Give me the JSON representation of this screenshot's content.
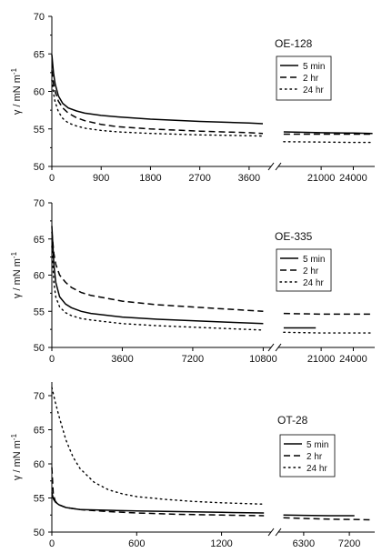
{
  "panels": [
    {
      "title": "OE-128",
      "ylabel": "γ / mN m",
      "ylabel_sup": "-1",
      "legend": [
        "5 min",
        "2 hr",
        "24 hr"
      ],
      "ylim": [
        50,
        70
      ],
      "yticks": [
        50,
        55,
        60,
        65,
        70
      ],
      "ytick_labels": [
        "50",
        "55",
        "60",
        "65",
        "70"
      ],
      "left_axis": {
        "xlim": [
          0,
          4000
        ],
        "xticks": [
          0,
          900,
          1800,
          2700,
          3600
        ],
        "xtick_labels": [
          "0",
          "900",
          "1800",
          "2700",
          "3600"
        ]
      },
      "right_axis": {
        "xlim": [
          17000,
          26000
        ],
        "xticks": [
          21000,
          24000
        ],
        "xtick_labels": [
          "21000",
          "24000"
        ]
      }
    },
    {
      "title": "OE-335",
      "ylabel": "γ / mN m",
      "ylabel_sup": "-1",
      "legend": [
        "5 min",
        "2 hr",
        "24 hr"
      ],
      "ylim": [
        50,
        70
      ],
      "yticks": [
        50,
        55,
        60,
        65,
        70
      ],
      "ytick_labels": [
        "50",
        "55",
        "60",
        "65",
        "70"
      ],
      "left_axis": {
        "xlim": [
          0,
          11200
        ],
        "xticks": [
          0,
          3600,
          7200,
          10800
        ],
        "xtick_labels": [
          "0",
          "3600",
          "7200",
          "10800"
        ]
      },
      "right_axis": {
        "xlim": [
          17000,
          26000
        ],
        "xticks": [
          21000,
          24000
        ],
        "xtick_labels": [
          "21000",
          "24000"
        ]
      }
    },
    {
      "title": "OT-28",
      "ylabel": "γ / mN m",
      "ylabel_sup": "-1",
      "legend": [
        "5 min",
        "2 hr",
        "24 hr"
      ],
      "ylim": [
        50,
        72
      ],
      "yticks": [
        50,
        55,
        60,
        65,
        70
      ],
      "ytick_labels": [
        "50",
        "55",
        "60",
        "65",
        "70"
      ],
      "left_axis": {
        "xlim": [
          0,
          1550
        ],
        "xticks": [
          0,
          600,
          1200
        ],
        "xtick_labels": [
          "0",
          "600",
          "1200"
        ]
      },
      "right_axis": {
        "xlim": [
          5800,
          7700
        ],
        "xticks": [
          6300,
          7200
        ],
        "xtick_labels": [
          "6300",
          "7200"
        ]
      }
    }
  ],
  "chart_data": [
    {
      "type": "line",
      "title": "OE-128",
      "ylabel": "γ / mN m-1",
      "ylim": [
        50,
        70
      ],
      "x_break": [
        4000,
        17000
      ],
      "series": [
        {
          "name": "5 min",
          "x": [
            0,
            30,
            60,
            120,
            200,
            300,
            450,
            600,
            900,
            1200,
            1800,
            2700,
            3600,
            3850,
            17500,
            21000,
            24000,
            25800
          ],
          "y": [
            64.9,
            62.5,
            61.0,
            59.4,
            58.4,
            57.8,
            57.4,
            57.1,
            56.8,
            56.6,
            56.3,
            56.0,
            55.8,
            55.7,
            54.6,
            54.5,
            54.45,
            54.4
          ]
        },
        {
          "name": "2 hr",
          "x": [
            0,
            30,
            60,
            120,
            200,
            300,
            450,
            600,
            900,
            1200,
            1800,
            2700,
            3600,
            3850,
            17500,
            21000,
            24000,
            25800
          ],
          "y": [
            62.8,
            61.0,
            60.0,
            58.7,
            57.8,
            57.1,
            56.5,
            56.1,
            55.6,
            55.3,
            55.0,
            54.7,
            54.5,
            54.4,
            54.3,
            54.3,
            54.3,
            54.3
          ]
        },
        {
          "name": "24 hr",
          "x": [
            0,
            30,
            60,
            120,
            200,
            300,
            450,
            600,
            900,
            1200,
            1800,
            2700,
            3600,
            3850,
            17500,
            21000,
            24000,
            25800
          ],
          "y": [
            61.5,
            59.8,
            58.6,
            57.3,
            56.4,
            55.8,
            55.4,
            55.1,
            54.8,
            54.6,
            54.4,
            54.2,
            54.1,
            54.05,
            53.3,
            53.25,
            53.2,
            53.2
          ]
        }
      ]
    },
    {
      "type": "line",
      "title": "OE-335",
      "ylabel": "γ / mN m-1",
      "ylim": [
        50,
        70
      ],
      "x_break": [
        11200,
        17000
      ],
      "series": [
        {
          "name": "5 min",
          "x": [
            0,
            100,
            200,
            400,
            700,
            1000,
            1500,
            2000,
            3600,
            5400,
            7200,
            9000,
            10800,
            17500,
            20500
          ],
          "y": [
            66.8,
            61.5,
            59.0,
            57.0,
            56.0,
            55.5,
            55.0,
            54.7,
            54.2,
            53.9,
            53.7,
            53.5,
            53.3,
            52.7,
            52.7
          ]
        },
        {
          "name": "2 hr",
          "x": [
            0,
            100,
            200,
            400,
            700,
            1000,
            1500,
            2000,
            3600,
            5400,
            7200,
            9000,
            10800,
            17500,
            21000,
            24000,
            25800
          ],
          "y": [
            66.0,
            63.0,
            61.5,
            60.0,
            59.0,
            58.3,
            57.6,
            57.2,
            56.4,
            55.9,
            55.6,
            55.3,
            55.0,
            54.7,
            54.6,
            54.6,
            54.6
          ]
        },
        {
          "name": "24 hr",
          "x": [
            0,
            100,
            200,
            400,
            700,
            1000,
            1500,
            2000,
            3600,
            5400,
            7200,
            9000,
            10800,
            17500,
            21000,
            24000,
            25800
          ],
          "y": [
            64.0,
            59.0,
            57.0,
            55.6,
            54.8,
            54.4,
            54.0,
            53.8,
            53.3,
            53.0,
            52.8,
            52.6,
            52.4,
            52.1,
            52.0,
            52.0,
            52.0
          ]
        }
      ]
    },
    {
      "type": "line",
      "title": "OT-28",
      "ylabel": "γ / mN m-1",
      "ylim": [
        50,
        72
      ],
      "x_break": [
        1550,
        5800
      ],
      "series": [
        {
          "name": "5 min",
          "x": [
            0,
            10,
            25,
            50,
            100,
            200,
            400,
            600,
            900,
            1200,
            1500,
            5900,
            6300,
            6800,
            7300
          ],
          "y": [
            55.8,
            54.9,
            54.4,
            54.0,
            53.6,
            53.3,
            53.2,
            53.1,
            53.0,
            52.9,
            52.8,
            52.5,
            52.45,
            52.4,
            52.4
          ]
        },
        {
          "name": "2 hr",
          "x": [
            0,
            10,
            25,
            50,
            100,
            200,
            400,
            600,
            900,
            1200,
            1500,
            5900,
            6300,
            6800,
            7200,
            7600
          ],
          "y": [
            59.5,
            55.5,
            54.5,
            54.0,
            53.6,
            53.3,
            53.0,
            52.8,
            52.6,
            52.5,
            52.4,
            52.1,
            52.0,
            51.9,
            51.85,
            51.8
          ]
        },
        {
          "name": "24 hr",
          "x": [
            0,
            25,
            50,
            100,
            150,
            200,
            300,
            400,
            500,
            600,
            800,
            1000,
            1200,
            1500
          ],
          "y": [
            71.2,
            69.0,
            67.0,
            63.5,
            61.0,
            59.3,
            57.3,
            56.2,
            55.6,
            55.2,
            54.8,
            54.5,
            54.3,
            54.1
          ]
        }
      ]
    }
  ]
}
